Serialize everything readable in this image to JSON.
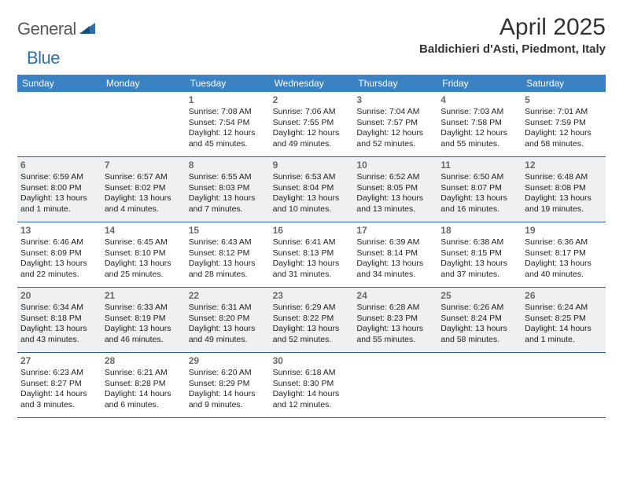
{
  "logo": {
    "general": "General",
    "blue": "Blue"
  },
  "title": "April 2025",
  "location": "Baldichieri d'Asti, Piedmont, Italy",
  "colors": {
    "header_bg": "#3b82c4",
    "header_text": "#ffffff",
    "week_divider": "#2c5f8d",
    "shade_bg": "#eef0f1",
    "daynum_color": "#6a6a6a",
    "body_text": "#222222",
    "logo_gray": "#5a5a5a",
    "logo_blue": "#2f6fa8"
  },
  "dow": [
    "Sunday",
    "Monday",
    "Tuesday",
    "Wednesday",
    "Thursday",
    "Friday",
    "Saturday"
  ],
  "weeks": [
    {
      "shade": false,
      "cells": [
        {
          "n": "",
          "sr": "",
          "ss": "",
          "dl1": "",
          "dl2": ""
        },
        {
          "n": "",
          "sr": "",
          "ss": "",
          "dl1": "",
          "dl2": ""
        },
        {
          "n": "1",
          "sr": "Sunrise: 7:08 AM",
          "ss": "Sunset: 7:54 PM",
          "dl1": "Daylight: 12 hours",
          "dl2": "and 45 minutes."
        },
        {
          "n": "2",
          "sr": "Sunrise: 7:06 AM",
          "ss": "Sunset: 7:55 PM",
          "dl1": "Daylight: 12 hours",
          "dl2": "and 49 minutes."
        },
        {
          "n": "3",
          "sr": "Sunrise: 7:04 AM",
          "ss": "Sunset: 7:57 PM",
          "dl1": "Daylight: 12 hours",
          "dl2": "and 52 minutes."
        },
        {
          "n": "4",
          "sr": "Sunrise: 7:03 AM",
          "ss": "Sunset: 7:58 PM",
          "dl1": "Daylight: 12 hours",
          "dl2": "and 55 minutes."
        },
        {
          "n": "5",
          "sr": "Sunrise: 7:01 AM",
          "ss": "Sunset: 7:59 PM",
          "dl1": "Daylight: 12 hours",
          "dl2": "and 58 minutes."
        }
      ]
    },
    {
      "shade": true,
      "cells": [
        {
          "n": "6",
          "sr": "Sunrise: 6:59 AM",
          "ss": "Sunset: 8:00 PM",
          "dl1": "Daylight: 13 hours",
          "dl2": "and 1 minute."
        },
        {
          "n": "7",
          "sr": "Sunrise: 6:57 AM",
          "ss": "Sunset: 8:02 PM",
          "dl1": "Daylight: 13 hours",
          "dl2": "and 4 minutes."
        },
        {
          "n": "8",
          "sr": "Sunrise: 6:55 AM",
          "ss": "Sunset: 8:03 PM",
          "dl1": "Daylight: 13 hours",
          "dl2": "and 7 minutes."
        },
        {
          "n": "9",
          "sr": "Sunrise: 6:53 AM",
          "ss": "Sunset: 8:04 PM",
          "dl1": "Daylight: 13 hours",
          "dl2": "and 10 minutes."
        },
        {
          "n": "10",
          "sr": "Sunrise: 6:52 AM",
          "ss": "Sunset: 8:05 PM",
          "dl1": "Daylight: 13 hours",
          "dl2": "and 13 minutes."
        },
        {
          "n": "11",
          "sr": "Sunrise: 6:50 AM",
          "ss": "Sunset: 8:07 PM",
          "dl1": "Daylight: 13 hours",
          "dl2": "and 16 minutes."
        },
        {
          "n": "12",
          "sr": "Sunrise: 6:48 AM",
          "ss": "Sunset: 8:08 PM",
          "dl1": "Daylight: 13 hours",
          "dl2": "and 19 minutes."
        }
      ]
    },
    {
      "shade": false,
      "cells": [
        {
          "n": "13",
          "sr": "Sunrise: 6:46 AM",
          "ss": "Sunset: 8:09 PM",
          "dl1": "Daylight: 13 hours",
          "dl2": "and 22 minutes."
        },
        {
          "n": "14",
          "sr": "Sunrise: 6:45 AM",
          "ss": "Sunset: 8:10 PM",
          "dl1": "Daylight: 13 hours",
          "dl2": "and 25 minutes."
        },
        {
          "n": "15",
          "sr": "Sunrise: 6:43 AM",
          "ss": "Sunset: 8:12 PM",
          "dl1": "Daylight: 13 hours",
          "dl2": "and 28 minutes."
        },
        {
          "n": "16",
          "sr": "Sunrise: 6:41 AM",
          "ss": "Sunset: 8:13 PM",
          "dl1": "Daylight: 13 hours",
          "dl2": "and 31 minutes."
        },
        {
          "n": "17",
          "sr": "Sunrise: 6:39 AM",
          "ss": "Sunset: 8:14 PM",
          "dl1": "Daylight: 13 hours",
          "dl2": "and 34 minutes."
        },
        {
          "n": "18",
          "sr": "Sunrise: 6:38 AM",
          "ss": "Sunset: 8:15 PM",
          "dl1": "Daylight: 13 hours",
          "dl2": "and 37 minutes."
        },
        {
          "n": "19",
          "sr": "Sunrise: 6:36 AM",
          "ss": "Sunset: 8:17 PM",
          "dl1": "Daylight: 13 hours",
          "dl2": "and 40 minutes."
        }
      ]
    },
    {
      "shade": true,
      "cells": [
        {
          "n": "20",
          "sr": "Sunrise: 6:34 AM",
          "ss": "Sunset: 8:18 PM",
          "dl1": "Daylight: 13 hours",
          "dl2": "and 43 minutes."
        },
        {
          "n": "21",
          "sr": "Sunrise: 6:33 AM",
          "ss": "Sunset: 8:19 PM",
          "dl1": "Daylight: 13 hours",
          "dl2": "and 46 minutes."
        },
        {
          "n": "22",
          "sr": "Sunrise: 6:31 AM",
          "ss": "Sunset: 8:20 PM",
          "dl1": "Daylight: 13 hours",
          "dl2": "and 49 minutes."
        },
        {
          "n": "23",
          "sr": "Sunrise: 6:29 AM",
          "ss": "Sunset: 8:22 PM",
          "dl1": "Daylight: 13 hours",
          "dl2": "and 52 minutes."
        },
        {
          "n": "24",
          "sr": "Sunrise: 6:28 AM",
          "ss": "Sunset: 8:23 PM",
          "dl1": "Daylight: 13 hours",
          "dl2": "and 55 minutes."
        },
        {
          "n": "25",
          "sr": "Sunrise: 6:26 AM",
          "ss": "Sunset: 8:24 PM",
          "dl1": "Daylight: 13 hours",
          "dl2": "and 58 minutes."
        },
        {
          "n": "26",
          "sr": "Sunrise: 6:24 AM",
          "ss": "Sunset: 8:25 PM",
          "dl1": "Daylight: 14 hours",
          "dl2": "and 1 minute."
        }
      ]
    },
    {
      "shade": false,
      "cells": [
        {
          "n": "27",
          "sr": "Sunrise: 6:23 AM",
          "ss": "Sunset: 8:27 PM",
          "dl1": "Daylight: 14 hours",
          "dl2": "and 3 minutes."
        },
        {
          "n": "28",
          "sr": "Sunrise: 6:21 AM",
          "ss": "Sunset: 8:28 PM",
          "dl1": "Daylight: 14 hours",
          "dl2": "and 6 minutes."
        },
        {
          "n": "29",
          "sr": "Sunrise: 6:20 AM",
          "ss": "Sunset: 8:29 PM",
          "dl1": "Daylight: 14 hours",
          "dl2": "and 9 minutes."
        },
        {
          "n": "30",
          "sr": "Sunrise: 6:18 AM",
          "ss": "Sunset: 8:30 PM",
          "dl1": "Daylight: 14 hours",
          "dl2": "and 12 minutes."
        },
        {
          "n": "",
          "sr": "",
          "ss": "",
          "dl1": "",
          "dl2": ""
        },
        {
          "n": "",
          "sr": "",
          "ss": "",
          "dl1": "",
          "dl2": ""
        },
        {
          "n": "",
          "sr": "",
          "ss": "",
          "dl1": "",
          "dl2": ""
        }
      ]
    }
  ]
}
